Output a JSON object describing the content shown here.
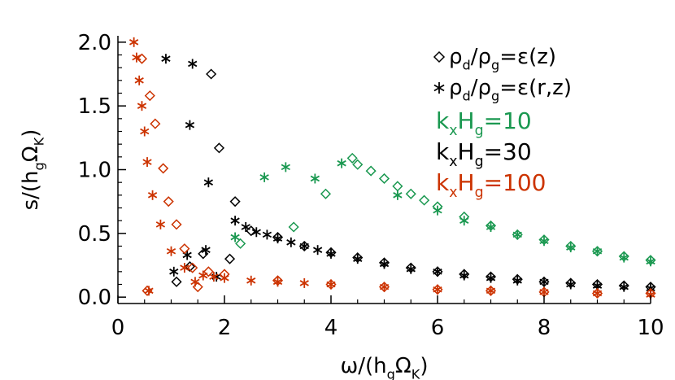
{
  "chart_data": {
    "type": "scatter",
    "xlabel": "ω/(h_gΩ_K)",
    "ylabel": "s/(h_gΩ_K)",
    "xlim": [
      0,
      10
    ],
    "ylim": [
      -0.05,
      2.05
    ],
    "x_ticks": [
      "0",
      "2",
      "4",
      "6",
      "8",
      "10"
    ],
    "y_ticks": [
      "0.0",
      "0.5",
      "1.0",
      "1.5",
      "2.0"
    ],
    "grid": false,
    "legend": {
      "placement": "top-right",
      "symbol_entries": [
        {
          "marker": "diamond",
          "label": "ρ_d/ρ_g=ε(z)"
        },
        {
          "marker": "asterisk",
          "label": "ρ_d/ρ_g=ε(r,z)"
        }
      ],
      "color_entries": [
        {
          "label": "k_xH_g=10",
          "color": "#1a9850"
        },
        {
          "label": "k_xH_g=30",
          "color": "#000000"
        },
        {
          "label": "k_xH_g=100",
          "color": "#cc3300"
        }
      ]
    },
    "series": [
      {
        "name": "k_xH_g=10, ρ_d/ρ_g=ε(z)",
        "marker": "diamond",
        "color": "#1a9850",
        "points": [
          [
            2.3,
            0.42
          ],
          [
            3.3,
            0.55
          ],
          [
            3.9,
            0.81
          ],
          [
            4.4,
            1.09
          ],
          [
            4.5,
            1.04
          ],
          [
            4.75,
            0.99
          ],
          [
            5.0,
            0.93
          ],
          [
            5.25,
            0.87
          ],
          [
            5.5,
            0.81
          ],
          [
            5.75,
            0.76
          ],
          [
            6.0,
            0.71
          ],
          [
            6.5,
            0.63
          ],
          [
            7.0,
            0.56
          ],
          [
            7.5,
            0.49
          ],
          [
            8.0,
            0.45
          ],
          [
            8.5,
            0.4
          ],
          [
            9.0,
            0.36
          ],
          [
            9.5,
            0.32
          ],
          [
            10.0,
            0.29
          ]
        ]
      },
      {
        "name": "k_xH_g=10, ρ_d/ρ_g=ε(r,z)",
        "marker": "asterisk",
        "color": "#1a9850",
        "points": [
          [
            2.2,
            0.47
          ],
          [
            2.75,
            0.94
          ],
          [
            3.15,
            1.02
          ],
          [
            3.7,
            0.93
          ],
          [
            4.2,
            1.05
          ],
          [
            5.25,
            0.8
          ],
          [
            6.0,
            0.68
          ],
          [
            6.5,
            0.6
          ],
          [
            7.0,
            0.55
          ],
          [
            7.5,
            0.49
          ],
          [
            8.0,
            0.44
          ],
          [
            8.5,
            0.39
          ],
          [
            9.0,
            0.36
          ],
          [
            9.5,
            0.31
          ],
          [
            10.0,
            0.28
          ]
        ]
      },
      {
        "name": "k_xH_g=30, ρ_d/ρ_g=ε(z)",
        "marker": "diamond",
        "color": "#000000",
        "points": [
          [
            1.1,
            0.12
          ],
          [
            1.35,
            0.24
          ],
          [
            1.6,
            0.34
          ],
          [
            1.75,
            1.75
          ],
          [
            1.9,
            1.17
          ],
          [
            2.1,
            0.3
          ],
          [
            2.2,
            0.75
          ],
          [
            2.5,
            0.52
          ],
          [
            3.0,
            0.47
          ],
          [
            3.5,
            0.4
          ],
          [
            4.0,
            0.35
          ],
          [
            4.5,
            0.31
          ],
          [
            5.0,
            0.27
          ],
          [
            5.5,
            0.23
          ],
          [
            6.0,
            0.2
          ],
          [
            6.5,
            0.18
          ],
          [
            7.0,
            0.16
          ],
          [
            7.5,
            0.14
          ],
          [
            8.0,
            0.12
          ],
          [
            8.5,
            0.11
          ],
          [
            9.0,
            0.1
          ],
          [
            9.5,
            0.09
          ],
          [
            10.0,
            0.08
          ]
        ]
      },
      {
        "name": "k_xH_g=30, ρ_d/ρ_g=ε(r,z)",
        "marker": "asterisk",
        "color": "#000000",
        "points": [
          [
            0.9,
            1.87
          ],
          [
            1.05,
            0.2
          ],
          [
            1.3,
            0.33
          ],
          [
            1.35,
            1.35
          ],
          [
            1.4,
            1.83
          ],
          [
            1.65,
            0.37
          ],
          [
            1.7,
            0.9
          ],
          [
            1.85,
            0.16
          ],
          [
            2.2,
            0.6
          ],
          [
            2.4,
            0.55
          ],
          [
            2.6,
            0.51
          ],
          [
            2.8,
            0.49
          ],
          [
            3.0,
            0.46
          ],
          [
            3.25,
            0.43
          ],
          [
            3.5,
            0.4
          ],
          [
            3.75,
            0.37
          ],
          [
            4.0,
            0.34
          ],
          [
            4.5,
            0.3
          ],
          [
            5.0,
            0.26
          ],
          [
            5.5,
            0.22
          ],
          [
            6.0,
            0.2
          ],
          [
            6.5,
            0.17
          ],
          [
            7.0,
            0.15
          ],
          [
            7.5,
            0.13
          ],
          [
            8.0,
            0.12
          ],
          [
            8.5,
            0.1
          ],
          [
            9.0,
            0.09
          ],
          [
            9.5,
            0.08
          ],
          [
            10.0,
            0.07
          ]
        ]
      },
      {
        "name": "k_xH_g=100, ρ_d/ρ_g=ε(z)",
        "marker": "diamond",
        "color": "#cc3300",
        "points": [
          [
            0.45,
            1.87
          ],
          [
            0.55,
            0.05
          ],
          [
            0.6,
            1.58
          ],
          [
            0.7,
            1.36
          ],
          [
            0.85,
            1.01
          ],
          [
            0.95,
            0.75
          ],
          [
            1.1,
            0.57
          ],
          [
            1.25,
            0.38
          ],
          [
            1.4,
            0.23
          ],
          [
            1.5,
            0.08
          ],
          [
            1.7,
            0.2
          ],
          [
            2.0,
            0.18
          ],
          [
            3.0,
            0.13
          ],
          [
            4.0,
            0.1
          ],
          [
            5.0,
            0.08
          ],
          [
            6.0,
            0.06
          ],
          [
            7.0,
            0.05
          ],
          [
            8.0,
            0.04
          ],
          [
            9.0,
            0.03
          ],
          [
            10.0,
            0.03
          ]
        ]
      },
      {
        "name": "k_xH_g=100, ρ_d/ρ_g=ε(r,z)",
        "marker": "asterisk",
        "color": "#cc3300",
        "points": [
          [
            0.3,
            2.0
          ],
          [
            0.35,
            1.88
          ],
          [
            0.4,
            1.7
          ],
          [
            0.45,
            1.5
          ],
          [
            0.5,
            1.3
          ],
          [
            0.55,
            1.06
          ],
          [
            0.58,
            0.05
          ],
          [
            0.65,
            0.8
          ],
          [
            0.8,
            0.57
          ],
          [
            1.0,
            0.36
          ],
          [
            1.25,
            0.23
          ],
          [
            1.45,
            0.12
          ],
          [
            1.6,
            0.17
          ],
          [
            1.8,
            0.16
          ],
          [
            2.0,
            0.15
          ],
          [
            2.5,
            0.13
          ],
          [
            3.0,
            0.12
          ],
          [
            3.5,
            0.11
          ],
          [
            4.0,
            0.1
          ],
          [
            5.0,
            0.08
          ],
          [
            6.0,
            0.06
          ],
          [
            7.0,
            0.05
          ],
          [
            8.0,
            0.04
          ],
          [
            9.0,
            0.03
          ],
          [
            10.0,
            0.02
          ]
        ]
      }
    ]
  }
}
